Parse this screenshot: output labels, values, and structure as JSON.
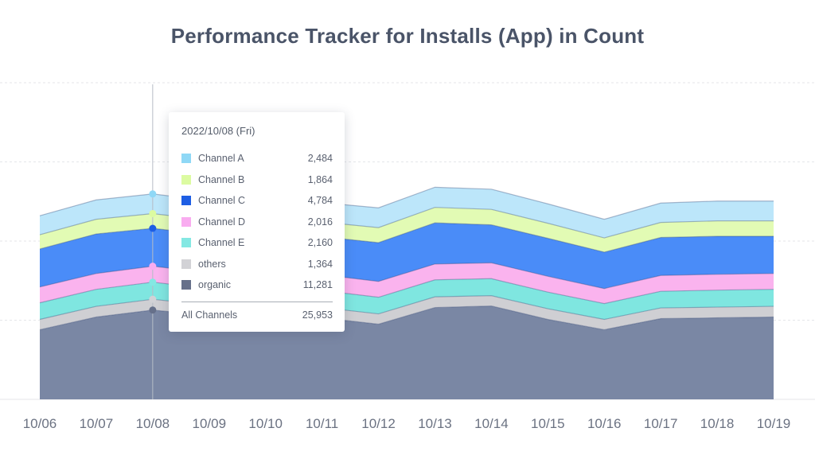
{
  "title": "Performance Tracker for Installs (App) in Count",
  "chart_data": {
    "type": "area",
    "stacked": true,
    "title": "Performance Tracker for Installs (App) in Count",
    "x": [
      "10/06",
      "10/07",
      "10/08",
      "10/09",
      "10/10",
      "10/11",
      "10/12",
      "10/13",
      "10/14",
      "10/15",
      "10/16",
      "10/17",
      "10/18",
      "10/19"
    ],
    "ylim": [
      0,
      40000
    ],
    "grid": true,
    "highlight_index": 2,
    "series": [
      {
        "name": "organic",
        "color": "#7a87a4",
        "values": [
          8800,
          10400,
          11281,
          10600,
          10300,
          10300,
          9500,
          11600,
          11800,
          10100,
          8800,
          10200,
          10300,
          10400
        ]
      },
      {
        "name": "others",
        "color": "#cfcfd3",
        "values": [
          1300,
          1350,
          1364,
          1300,
          1300,
          1300,
          1300,
          1350,
          1300,
          1350,
          1300,
          1350,
          1350,
          1350
        ]
      },
      {
        "name": "Channel E",
        "color": "#7fe6e0",
        "values": [
          2100,
          2150,
          2160,
          2100,
          2100,
          2150,
          2100,
          2150,
          2150,
          2100,
          2000,
          2100,
          2150,
          2150
        ]
      },
      {
        "name": "Channel D",
        "color": "#fab3ee",
        "values": [
          2000,
          2000,
          2016,
          2000,
          2000,
          2000,
          2000,
          2000,
          2000,
          2000,
          1900,
          2000,
          2000,
          2000
        ]
      },
      {
        "name": "Channel C",
        "color": "#4a8cf8",
        "values": [
          4800,
          5000,
          4784,
          4800,
          4800,
          4800,
          4900,
          5200,
          4800,
          4800,
          4600,
          4800,
          4800,
          4700
        ]
      },
      {
        "name": "Channel B",
        "color": "#e2fbb4",
        "values": [
          1800,
          1850,
          1864,
          1850,
          1850,
          1850,
          1900,
          1950,
          1950,
          1900,
          1800,
          1900,
          1950,
          1950
        ]
      },
      {
        "name": "Channel A",
        "color": "#bce6fa",
        "values": [
          2400,
          2450,
          2484,
          2450,
          2450,
          2450,
          2500,
          2550,
          2550,
          2450,
          2350,
          2450,
          2500,
          2500
        ]
      }
    ]
  },
  "tooltip": {
    "date": "2022/10/08 (Fri)",
    "rows": [
      {
        "name": "Channel A",
        "value": "2,484",
        "color": "#8fd8f6"
      },
      {
        "name": "Channel B",
        "value": "1,864",
        "color": "#dcfba1"
      },
      {
        "name": "Channel C",
        "value": "4,784",
        "color": "#1e5ee4"
      },
      {
        "name": "Channel D",
        "value": "2,016",
        "color": "#f9acf0"
      },
      {
        "name": "Channel E",
        "value": "2,160",
        "color": "#84e8e3"
      },
      {
        "name": "others",
        "value": "1,364",
        "color": "#d2d2d6"
      },
      {
        "name": "organic",
        "value": "11,281",
        "color": "#66708a"
      }
    ],
    "total_label": "All Channels",
    "total_value": "25,953"
  }
}
